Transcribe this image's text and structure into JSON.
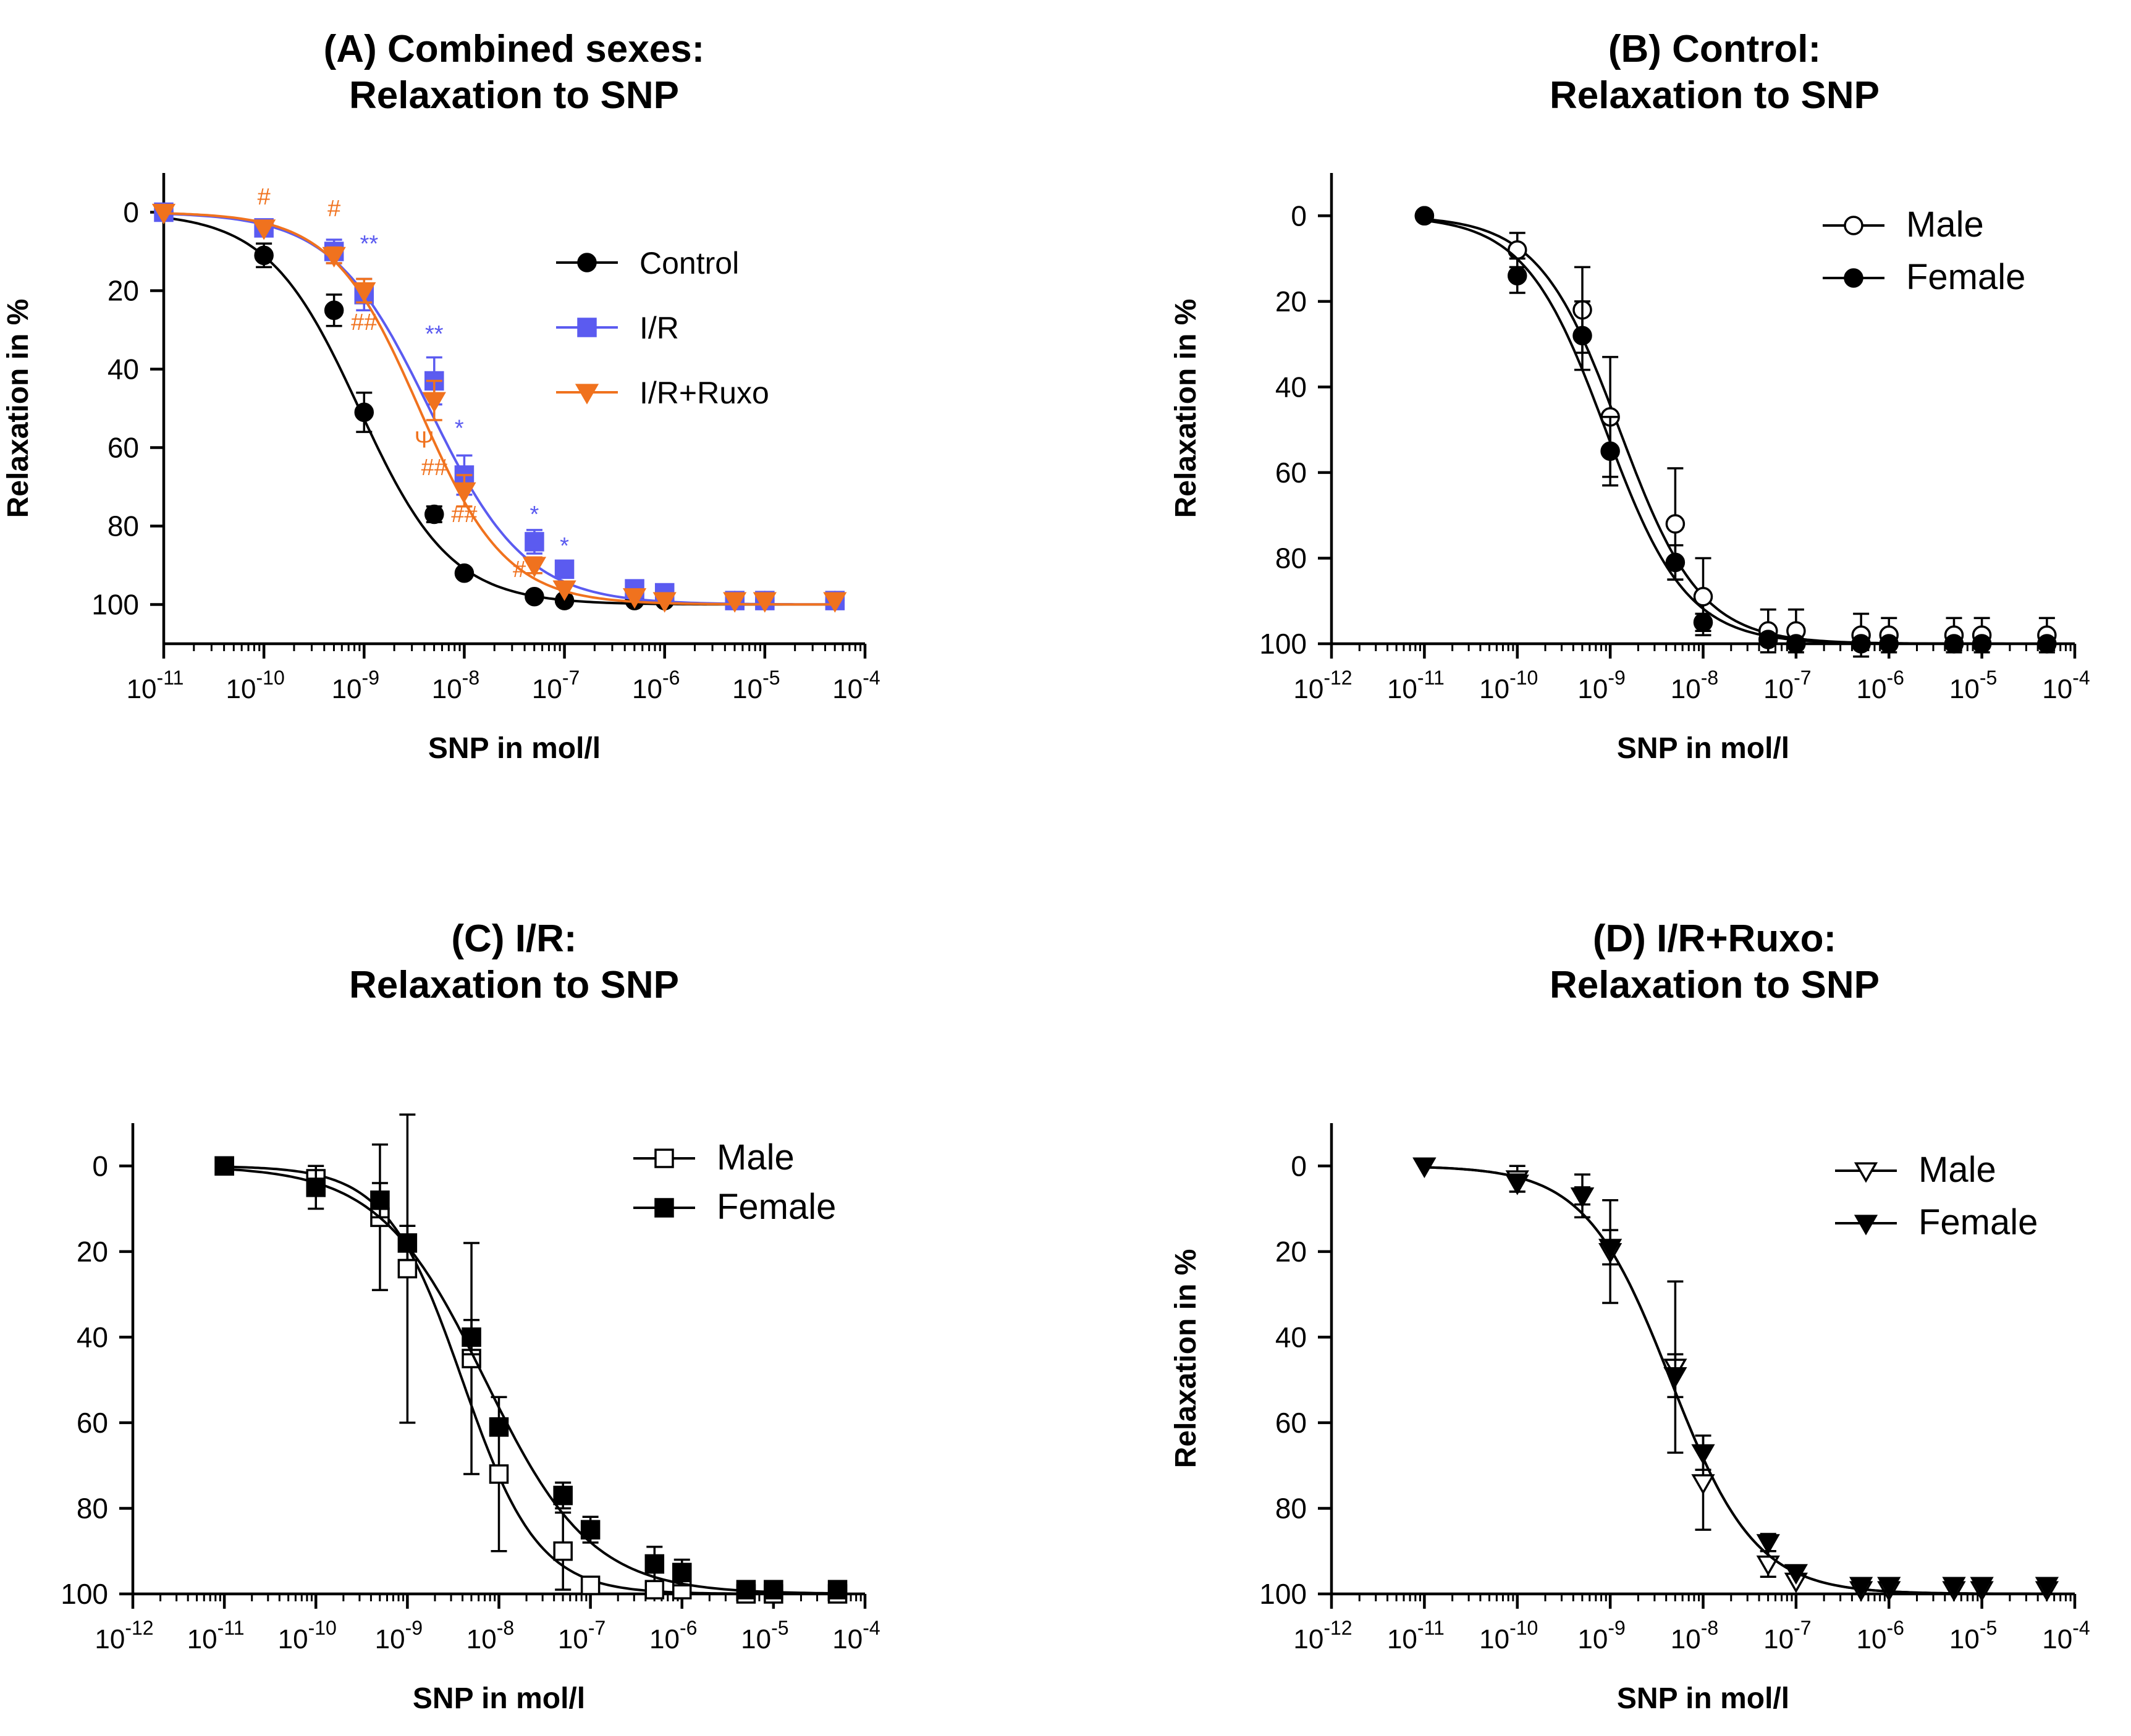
{
  "chart_data": [
    {
      "id": "A",
      "type": "line",
      "title_line1": "(A) Combined sexes:",
      "title_line2": "Relaxation to SNP",
      "xlabel": "SNP in mol/l",
      "ylabel": "Relaxation in %",
      "xscale": "log",
      "xlim_exp": [
        -11,
        -4
      ],
      "xticks_exp": [
        -11,
        -10,
        -9,
        -8,
        -7,
        -6,
        -5,
        -4
      ],
      "yticks": [
        0,
        20,
        40,
        60,
        80,
        100
      ],
      "ylim": [
        -10,
        110
      ],
      "y_inverted": true,
      "legend": "top-right",
      "series": [
        {
          "name": "Control",
          "color": "#000000",
          "marker": "circle",
          "filled": true,
          "x_exp": [
            -11,
            -10,
            -9.3,
            -9,
            -8.3,
            -8,
            -7.3,
            -7,
            -6.3,
            -6,
            -5.3,
            -5,
            -4.3
          ],
          "y": [
            0,
            11,
            25,
            51,
            77,
            92,
            98,
            99,
            99,
            99,
            99,
            99,
            99
          ],
          "err": [
            1,
            3,
            4,
            5,
            2,
            1,
            1,
            1,
            1,
            1,
            1,
            1,
            1
          ],
          "fit_logEC50": -9.05,
          "fit_hill": 0.95
        },
        {
          "name": "I/R",
          "color": "#5b5bf0",
          "marker": "square",
          "filled": true,
          "x_exp": [
            -11,
            -10,
            -9.3,
            -9,
            -8.3,
            -8,
            -7.3,
            -7,
            -6.3,
            -6,
            -5.3,
            -5,
            -4.3
          ],
          "y": [
            0,
            4,
            10,
            21,
            43,
            67,
            84,
            91,
            96,
            97,
            99,
            99,
            99
          ],
          "err": [
            1,
            1,
            3,
            4,
            6,
            5,
            3,
            2,
            1,
            1,
            1,
            1,
            1
          ],
          "fit_logEC50": -8.35,
          "fit_hill": 0.9
        },
        {
          "name": "I/R+Ruxo",
          "color": "#f0721e",
          "marker": "triangle-down",
          "filled": true,
          "x_exp": [
            -11,
            -10,
            -9.3,
            -9,
            -8.3,
            -8,
            -7.3,
            -7,
            -6.3,
            -6,
            -5.3,
            -5,
            -4.3
          ],
          "y": [
            0,
            4,
            11,
            20,
            48,
            71,
            90,
            96,
            98,
            99,
            99,
            99,
            99
          ],
          "err": [
            1,
            1,
            2,
            3,
            5,
            4,
            2,
            1,
            1,
            1,
            1,
            1,
            1
          ],
          "fit_logEC50": -8.45,
          "fit_hill": 1.0
        }
      ],
      "annotations": [
        {
          "text": "#",
          "series": "I/R+Ruxo",
          "x_exp": -10,
          "y": -2
        },
        {
          "text": "#",
          "series": "I/R+Ruxo",
          "x_exp": -9.3,
          "y": 1
        },
        {
          "text": "**",
          "series": "I/R",
          "x_exp": -8.95,
          "y": 10
        },
        {
          "text": "##",
          "series": "I/R+Ruxo",
          "x_exp": -9.0,
          "y": 30
        },
        {
          "text": "**",
          "series": "I/R",
          "x_exp": -8.3,
          "y": 33
        },
        {
          "text": "*",
          "series": "I/R",
          "x_exp": -8.05,
          "y": 57
        },
        {
          "text": "Ψ",
          "series": "I/R+Ruxo",
          "x_exp": -8.4,
          "y": 60
        },
        {
          "text": "##",
          "series": "I/R+Ruxo",
          "x_exp": -8.3,
          "y": 67
        },
        {
          "text": "##",
          "series": "I/R+Ruxo",
          "x_exp": -8.0,
          "y": 79
        },
        {
          "text": "*",
          "series": "I/R",
          "x_exp": -7.3,
          "y": 79
        },
        {
          "text": "#",
          "series": "I/R+Ruxo",
          "x_exp": -7.45,
          "y": 93
        },
        {
          "text": "*",
          "series": "I/R",
          "x_exp": -7.0,
          "y": 87
        }
      ]
    },
    {
      "id": "B",
      "type": "line",
      "title_line1": "(B) Control:",
      "title_line2": "Relaxation to SNP",
      "xlabel": "SNP in mol/l",
      "ylabel": "Relaxation in %",
      "xscale": "log",
      "xlim_exp": [
        -12,
        -4
      ],
      "xticks_exp": [
        -12,
        -11,
        -10,
        -9,
        -8,
        -7,
        -6,
        -5,
        -4
      ],
      "yticks": [
        0,
        20,
        40,
        60,
        80,
        100
      ],
      "ylim": [
        -10,
        100
      ],
      "y_inverted": true,
      "legend": "top-right",
      "series": [
        {
          "name": "Male",
          "color": "#000000",
          "marker": "circle",
          "filled": false,
          "x_exp": [
            -11,
            -10,
            -9.3,
            -9,
            -8.3,
            -8,
            -7.3,
            -7,
            -6.3,
            -6,
            -5.3,
            -5,
            -4.3
          ],
          "y": [
            0,
            8,
            22,
            47,
            72,
            89,
            97,
            97,
            98,
            98,
            98,
            98,
            98
          ],
          "err": [
            1,
            4,
            10,
            14,
            13,
            9,
            5,
            5,
            5,
            4,
            4,
            4,
            4
          ],
          "fit_logEC50": -8.9,
          "fit_hill": 1.0
        },
        {
          "name": "Female",
          "color": "#000000",
          "marker": "circle",
          "filled": true,
          "x_exp": [
            -11,
            -10,
            -9.3,
            -9,
            -8.3,
            -8,
            -7.3,
            -7,
            -6.3,
            -6,
            -5.3,
            -5,
            -4.3
          ],
          "y": [
            0,
            14,
            28,
            55,
            81,
            95,
            99,
            100,
            100,
            100,
            100,
            100,
            100
          ],
          "err": [
            1,
            4,
            8,
            8,
            4,
            2,
            1,
            1,
            1,
            1,
            1,
            1,
            1
          ],
          "fit_logEC50": -9.05,
          "fit_hill": 1.0
        }
      ]
    },
    {
      "id": "C",
      "type": "line",
      "title_line1": "(C) I/R:",
      "title_line2": "Relaxation to SNP",
      "xlabel": "SNP in mol/l",
      "ylabel": "Relaxation in %",
      "xscale": "log",
      "xlim_exp": [
        -12,
        -4
      ],
      "xticks_exp": [
        -12,
        -11,
        -10,
        -9,
        -8,
        -7,
        -6,
        -5,
        -4
      ],
      "yticks": [
        0,
        20,
        40,
        60,
        80,
        100
      ],
      "ylim": [
        -10,
        100
      ],
      "y_inverted": true,
      "legend": "top-right",
      "series": [
        {
          "name": "Male",
          "color": "#000000",
          "marker": "square",
          "filled": false,
          "x_exp": [
            -11,
            -10,
            -9.3,
            -9,
            -8.3,
            -8,
            -7.3,
            -7,
            -6.3,
            -6,
            -5.3,
            -5,
            -4.3
          ],
          "y": [
            0,
            3,
            12,
            24,
            45,
            72,
            90,
            98,
            99,
            99,
            100,
            100,
            100
          ],
          "err": [
            1,
            2,
            17,
            36,
            27,
            18,
            9,
            2,
            2,
            2,
            1,
            1,
            1
          ],
          "fit_logEC50": -8.4,
          "fit_hill": 1.05
        },
        {
          "name": "Female",
          "color": "#000000",
          "marker": "square",
          "filled": true,
          "x_exp": [
            -11,
            -10,
            -9.3,
            -9,
            -8.3,
            -8,
            -7.3,
            -7,
            -6.3,
            -6,
            -5.3,
            -5,
            -4.3
          ],
          "y": [
            0,
            5,
            8,
            18,
            40,
            61,
            77,
            85,
            93,
            95,
            99,
            99,
            99
          ],
          "err": [
            1,
            5,
            4,
            4,
            4,
            2,
            3,
            3,
            4,
            3,
            1,
            1,
            1
          ],
          "fit_logEC50": -8.15,
          "fit_hill": 0.75
        }
      ]
    },
    {
      "id": "D",
      "type": "line",
      "title_line1": "(D) I/R+Ruxo:",
      "title_line2": "Relaxation to SNP",
      "xlabel": "SNP in mol/l",
      "ylabel": "Relaxation in %",
      "xscale": "log",
      "xlim_exp": [
        -12,
        -4
      ],
      "xticks_exp": [
        -12,
        -11,
        -10,
        -9,
        -8,
        -7,
        -6,
        -5,
        -4
      ],
      "yticks": [
        0,
        20,
        40,
        60,
        80,
        100
      ],
      "ylim": [
        -10,
        100
      ],
      "y_inverted": true,
      "legend": "top-right",
      "series": [
        {
          "name": "Male",
          "color": "#000000",
          "marker": "triangle-down",
          "filled": false,
          "x_exp": [
            -11,
            -10,
            -9.3,
            -9,
            -8.3,
            -8,
            -7.3,
            -7,
            -6.3,
            -6,
            -5.3,
            -5,
            -4.3
          ],
          "y": [
            0,
            3,
            7,
            20,
            47,
            74,
            93,
            97,
            99,
            99,
            99,
            99,
            99
          ],
          "err": [
            1,
            3,
            5,
            12,
            20,
            11,
            3,
            1,
            1,
            1,
            1,
            1,
            1
          ],
          "fit_logEC50": -8.35,
          "fit_hill": 0.95
        },
        {
          "name": "Female",
          "color": "#000000",
          "marker": "triangle-down",
          "filled": true,
          "x_exp": [
            -11,
            -10,
            -9.3,
            -9,
            -8.3,
            -8,
            -7.3,
            -7,
            -6.3,
            -6,
            -5.3,
            -5,
            -4.3
          ],
          "y": [
            0,
            4,
            7,
            19,
            49,
            67,
            88,
            95,
            98,
            98,
            98,
            98,
            98
          ],
          "err": [
            1,
            2,
            2,
            4,
            5,
            4,
            2,
            1,
            1,
            1,
            1,
            1,
            1
          ],
          "fit_logEC50": -8.35,
          "fit_hill": 0.95
        }
      ]
    }
  ]
}
